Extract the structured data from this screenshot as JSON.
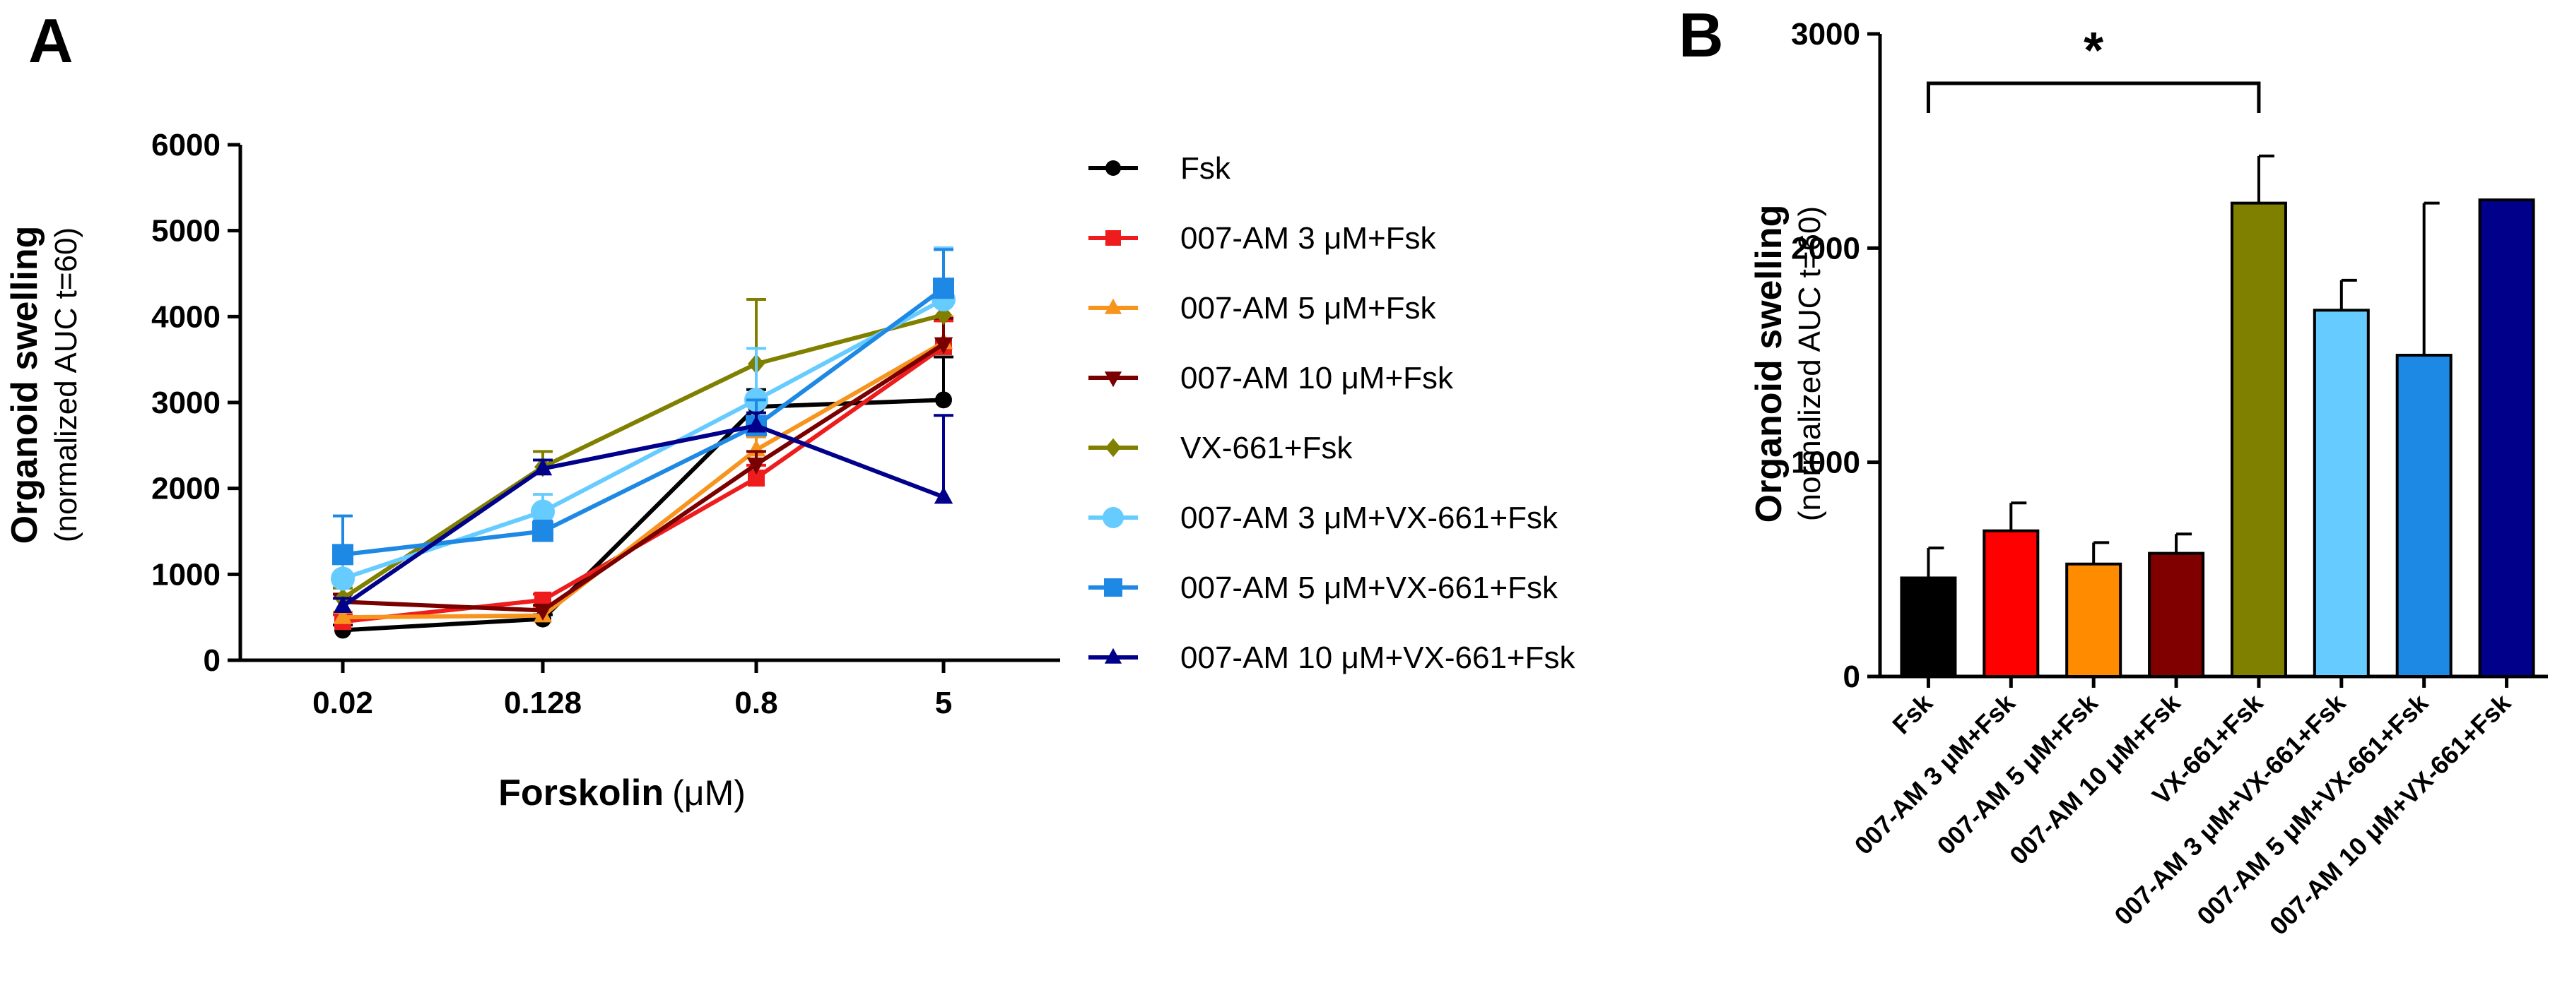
{
  "panels": {
    "a": "A",
    "b": "B"
  },
  "chart_data": [
    {
      "type": "line",
      "panel": "A",
      "title": "",
      "xlabel": "Forskolin",
      "xlabel_unit": "(μM)",
      "ylabel": "Organoid swelling",
      "ylabel_sub": "(normalized AUC t=60)",
      "x": [
        "0.02",
        "0.128",
        "0.8",
        "5"
      ],
      "ylim": [
        0,
        6000
      ],
      "yticks": [
        "0",
        "1000",
        "2000",
        "3000",
        "4000",
        "5000",
        "6000"
      ],
      "series": [
        {
          "name": "Fsk",
          "color": "#000000",
          "marker": "circle",
          "values": [
            350,
            480,
            2950,
            3030
          ],
          "errors": [
            60,
            50,
            200,
            500
          ]
        },
        {
          "name": "007-AM 3 μM+Fsk",
          "color": "#ee1c1c",
          "marker": "square",
          "values": [
            450,
            700,
            2120,
            3650
          ],
          "errors": [
            80,
            70,
            150,
            300
          ]
        },
        {
          "name": "007-AM 5 μM+Fsk",
          "color": "#f7941d",
          "marker": "triangle-up",
          "values": [
            500,
            520,
            2450,
            3700
          ],
          "errors": [
            60,
            80,
            150,
            300
          ]
        },
        {
          "name": "007-AM 10 μM+Fsk",
          "color": "#7a0000",
          "marker": "triangle-down",
          "values": [
            680,
            580,
            2280,
            3680
          ],
          "errors": [
            90,
            60,
            150,
            300
          ]
        },
        {
          "name": "VX-661+Fsk",
          "color": "#808000",
          "marker": "diamond",
          "values": [
            720,
            2250,
            3450,
            4020
          ],
          "errors": [
            120,
            180,
            750,
            300
          ]
        },
        {
          "name": "007-AM 3 μM+VX-661+Fsk",
          "color": "#66ccff",
          "marker": "circle",
          "values": [
            950,
            1730,
            3030,
            4200
          ],
          "errors": [
            200,
            200,
            600,
            600
          ]
        },
        {
          "name": "007-AM 5 μM+VX-661+Fsk",
          "color": "#1e88e5",
          "marker": "square",
          "values": [
            1230,
            1500,
            2730,
            4330
          ],
          "errors": [
            450,
            120,
            300,
            450
          ]
        },
        {
          "name": "007-AM 10 μM+VX-661+Fsk",
          "color": "#00008b",
          "marker": "triangle-up",
          "values": [
            630,
            2230,
            2730,
            1900
          ],
          "errors": [
            90,
            100,
            150,
            950
          ]
        }
      ]
    },
    {
      "type": "bar",
      "panel": "B",
      "title": "",
      "xlabel": "",
      "ylabel": "Organoid swelling",
      "ylabel_sub": "(normalized AUC t=60)",
      "ylim": [
        0,
        3000
      ],
      "yticks": [
        "0",
        "1000",
        "2000",
        "3000"
      ],
      "categories": [
        "Fsk",
        "007-AM 3 μM+Fsk",
        "007-AM 5 μM+Fsk",
        "007-AM 10 μM+Fsk",
        "VX-661+Fsk",
        "007-AM 3 μM+VX-661+Fsk",
        "007-AM 5 μM+VX-661+Fsk",
        "007-AM 10 μM+VX-661+Fsk"
      ],
      "values": [
        460,
        680,
        525,
        575,
        2210,
        1710,
        1500,
        2225
      ],
      "errors": [
        140,
        130,
        100,
        90,
        220,
        140,
        710,
        0
      ],
      "colors": [
        "#000000",
        "#ff0000",
        "#ff8c00",
        "#800000",
        "#808000",
        "#66ccff",
        "#1e88e5",
        "#00008b"
      ],
      "significance": {
        "label": "*",
        "from": "Fsk",
        "to": "VX-661+Fsk"
      }
    }
  ]
}
